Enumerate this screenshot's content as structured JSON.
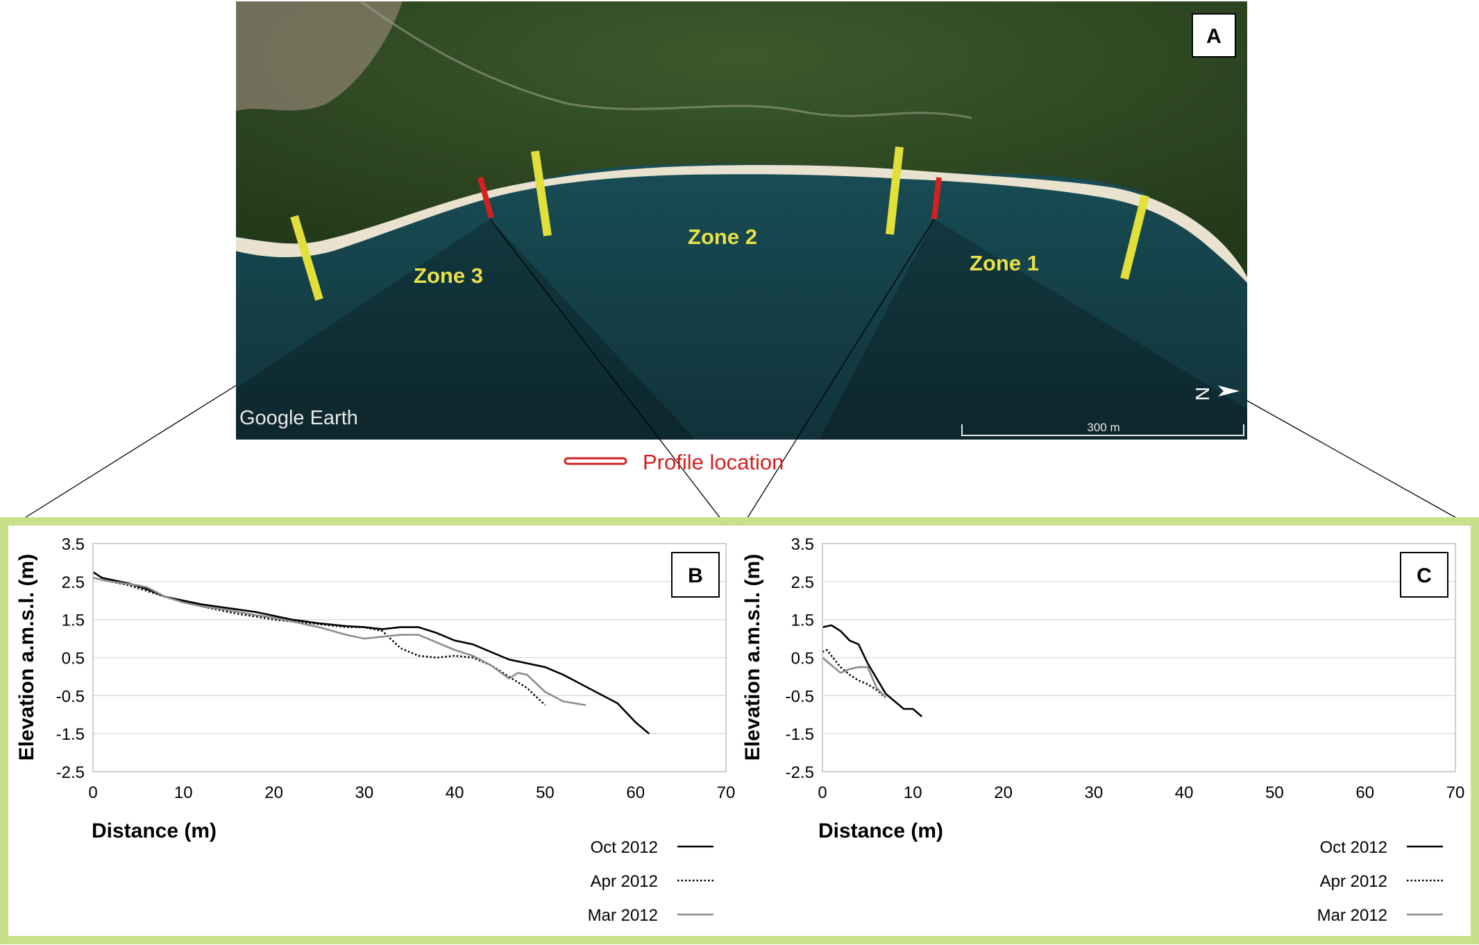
{
  "map": {
    "panel_label": "A",
    "zones": [
      "Zone 3",
      "Zone 2",
      "Zone 1"
    ],
    "watermark": "Google Earth",
    "scale_label": "300 m",
    "north_label": "N",
    "legend_label": "Profile location",
    "colors": {
      "zone_text": "#e8e04a",
      "transect": "#e2df3a",
      "profile": "#d42020",
      "sea": "#16464f",
      "land": "#2e4a22",
      "frame": "#c9e08a"
    }
  },
  "chart_data": [
    {
      "type": "line",
      "panel_label": "B",
      "xlabel": "Distance (m)",
      "ylabel": "Elevation a.m.s.l. (m)",
      "xlim": [
        0,
        70
      ],
      "ylim": [
        -2.5,
        3.5
      ],
      "xticks": [
        "0",
        "10",
        "20",
        "30",
        "40",
        "50",
        "60",
        "70"
      ],
      "yticks": [
        "3.5",
        "2.5",
        "1.5",
        "0.5",
        "-0.5",
        "-1.5",
        "-2.5"
      ],
      "grid": true,
      "legend_position": "bottom-right",
      "series": [
        {
          "name": "Oct 2012",
          "color": "#000000",
          "dash": "solid",
          "x": [
            0,
            1,
            2,
            4,
            6,
            8,
            10,
            12,
            15,
            18,
            20,
            22,
            25,
            28,
            30,
            32,
            34,
            36,
            38,
            40,
            42,
            44,
            46,
            48,
            50,
            52,
            54,
            56,
            58,
            60,
            61.5
          ],
          "y": [
            2.75,
            2.6,
            2.55,
            2.45,
            2.3,
            2.1,
            2.0,
            1.9,
            1.8,
            1.7,
            1.6,
            1.5,
            1.4,
            1.33,
            1.3,
            1.25,
            1.3,
            1.3,
            1.15,
            0.95,
            0.85,
            0.65,
            0.45,
            0.35,
            0.25,
            0.05,
            -0.2,
            -0.45,
            -0.7,
            -1.2,
            -1.5
          ]
        },
        {
          "name": "Apr 2012",
          "color": "#000000",
          "dash": "dotted",
          "x": [
            0,
            2,
            4,
            6,
            8,
            10,
            12,
            14,
            16,
            18,
            20,
            22,
            25,
            28,
            30,
            32,
            34,
            36,
            38,
            40,
            42,
            44,
            46,
            48,
            50
          ],
          "y": [
            2.6,
            2.5,
            2.4,
            2.25,
            2.1,
            2.0,
            1.85,
            1.75,
            1.65,
            1.58,
            1.5,
            1.45,
            1.38,
            1.3,
            1.3,
            1.2,
            0.75,
            0.55,
            0.5,
            0.55,
            0.5,
            0.3,
            0.0,
            -0.3,
            -0.75
          ]
        },
        {
          "name": "Mar 2012",
          "color": "#8c8c8c",
          "dash": "solid",
          "x": [
            0,
            2,
            5,
            6,
            8,
            10,
            12,
            15,
            18,
            20,
            22,
            25,
            28,
            30,
            32,
            34,
            36,
            38,
            40,
            42,
            44,
            46,
            47,
            48,
            50,
            52,
            54.5
          ],
          "y": [
            2.6,
            2.5,
            2.4,
            2.35,
            2.1,
            1.95,
            1.85,
            1.75,
            1.62,
            1.55,
            1.45,
            1.3,
            1.1,
            1.0,
            1.05,
            1.1,
            1.1,
            0.9,
            0.7,
            0.55,
            0.3,
            -0.05,
            0.1,
            0.05,
            -0.4,
            -0.65,
            -0.75
          ]
        }
      ]
    },
    {
      "type": "line",
      "panel_label": "C",
      "xlabel": "Distance (m)",
      "ylabel": "Elevation a.m.s.l. (m)",
      "xlim": [
        0,
        70
      ],
      "ylim": [
        -2.5,
        3.5
      ],
      "xticks": [
        "0",
        "10",
        "20",
        "30",
        "40",
        "50",
        "60",
        "70"
      ],
      "yticks": [
        "3.5",
        "2.5",
        "1.5",
        "0.5",
        "-0.5",
        "-1.5",
        "-2.5"
      ],
      "grid": true,
      "legend_position": "bottom-right",
      "series": [
        {
          "name": "Oct 2012",
          "color": "#000000",
          "dash": "solid",
          "x": [
            0,
            1,
            2,
            3,
            4,
            5,
            6,
            7,
            8,
            9,
            10,
            11
          ],
          "y": [
            1.3,
            1.35,
            1.2,
            0.95,
            0.85,
            0.35,
            -0.05,
            -0.45,
            -0.65,
            -0.85,
            -0.85,
            -1.05
          ]
        },
        {
          "name": "Apr 2012",
          "color": "#000000",
          "dash": "dotted",
          "x": [
            0,
            0.5,
            1,
            2,
            3,
            4,
            5,
            6,
            7
          ],
          "y": [
            0.65,
            0.7,
            0.55,
            0.25,
            0.05,
            -0.1,
            -0.2,
            -0.35,
            -0.55
          ]
        },
        {
          "name": "Mar 2012",
          "color": "#8c8c8c",
          "dash": "solid",
          "x": [
            0,
            1,
            2,
            3,
            4,
            5,
            6,
            7
          ],
          "y": [
            0.5,
            0.3,
            0.1,
            0.2,
            0.25,
            0.25,
            -0.3,
            -0.55
          ]
        }
      ]
    }
  ]
}
